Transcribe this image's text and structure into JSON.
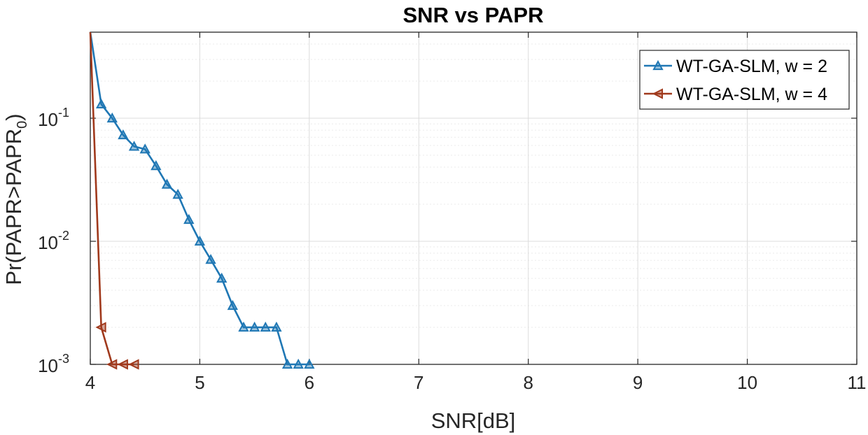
{
  "chart_data": {
    "type": "line",
    "title": "SNR vs PAPR",
    "xlabel": "SNR[dB]",
    "ylabel": "Pr(PAPR>PAPR",
    "ylabel_sub": "0",
    "ylabel_close": ")",
    "xlim": [
      4,
      11
    ],
    "ylim": [
      0.001,
      0.5
    ],
    "yscale": "log",
    "xticks": [
      4,
      5,
      6,
      7,
      8,
      9,
      10,
      11
    ],
    "yticks": [
      {
        "base": "10",
        "exp": "-3",
        "value": 0.001
      },
      {
        "base": "10",
        "exp": "-2",
        "value": 0.01
      },
      {
        "base": "10",
        "exp": "-1",
        "value": 0.1
      }
    ],
    "grid": true,
    "legend_position": "top-right",
    "series": [
      {
        "name": "WT-GA-SLM, w = 2",
        "color": "#1f77b4",
        "marker": "triangle-up",
        "x": [
          4.0,
          4.1,
          4.2,
          4.3,
          4.4,
          4.5,
          4.6,
          4.7,
          4.8,
          4.9,
          5.0,
          5.1,
          5.2,
          5.3,
          5.4,
          5.5,
          5.6,
          5.7,
          5.8,
          5.9,
          6.0
        ],
        "y": [
          0.5,
          0.13,
          0.1,
          0.073,
          0.059,
          0.056,
          0.041,
          0.029,
          0.024,
          0.015,
          0.01,
          0.0071,
          0.005,
          0.003,
          0.002,
          0.002,
          0.002,
          0.002,
          0.001,
          0.001,
          0.001
        ]
      },
      {
        "name": "WT-GA-SLM, w = 4",
        "color": "#a0391c",
        "marker": "triangle-left",
        "x": [
          4.0,
          4.1,
          4.2,
          4.3,
          4.4
        ],
        "y": [
          0.5,
          0.002,
          0.001,
          0.001,
          0.001
        ]
      }
    ]
  }
}
